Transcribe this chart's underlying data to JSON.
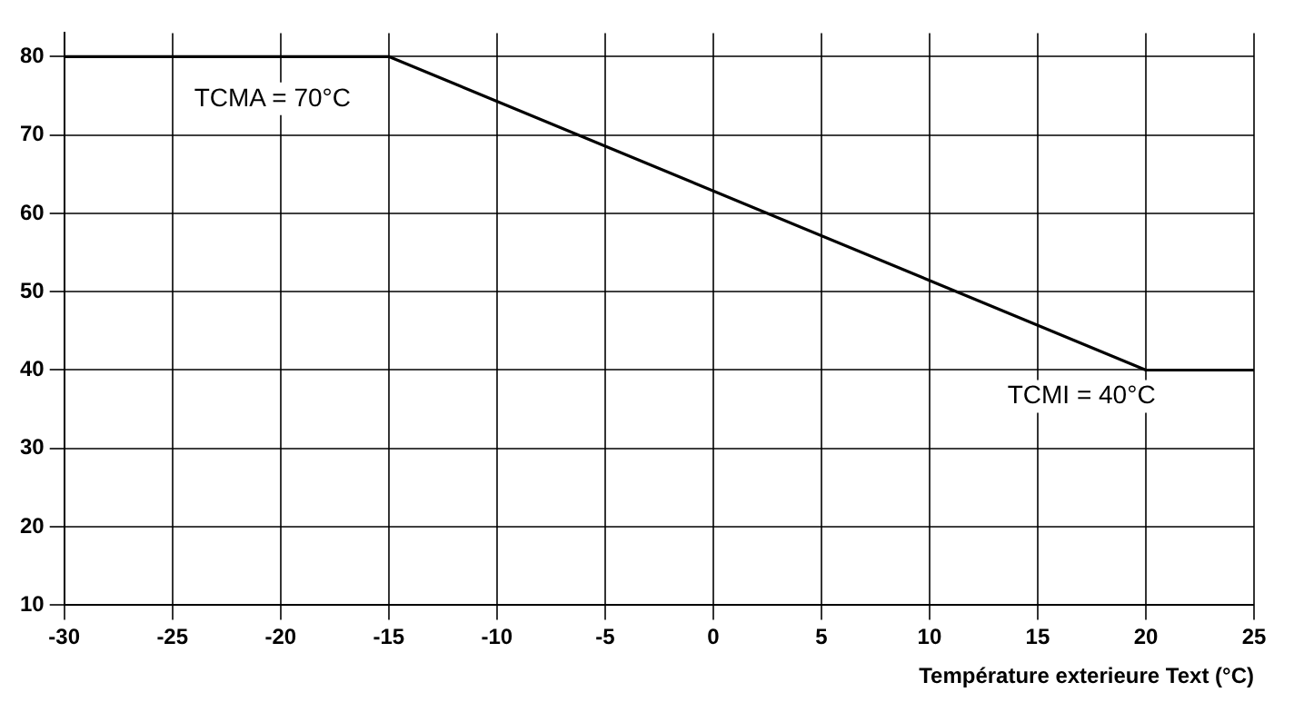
{
  "chart_data": {
    "type": "line",
    "xlabel": "Température exterieure Text (°C)",
    "x": [
      -30,
      -15,
      20,
      25
    ],
    "series": [
      {
        "color": "#000000",
        "values": [
          80,
          80,
          40,
          40
        ]
      }
    ],
    "xlim": [
      -30,
      25
    ],
    "xticks": [
      -30,
      -25,
      -20,
      -15,
      -10,
      -5,
      0,
      5,
      10,
      15,
      20,
      25
    ],
    "ylim": [
      10,
      83
    ],
    "yticks": [
      10,
      20,
      30,
      40,
      50,
      60,
      70,
      80
    ],
    "grid": true,
    "legend": false,
    "marker": "none",
    "line_style": "solid",
    "annotations": [
      "TCMA = 70°C",
      "TCMI = 40°C"
    ]
  }
}
